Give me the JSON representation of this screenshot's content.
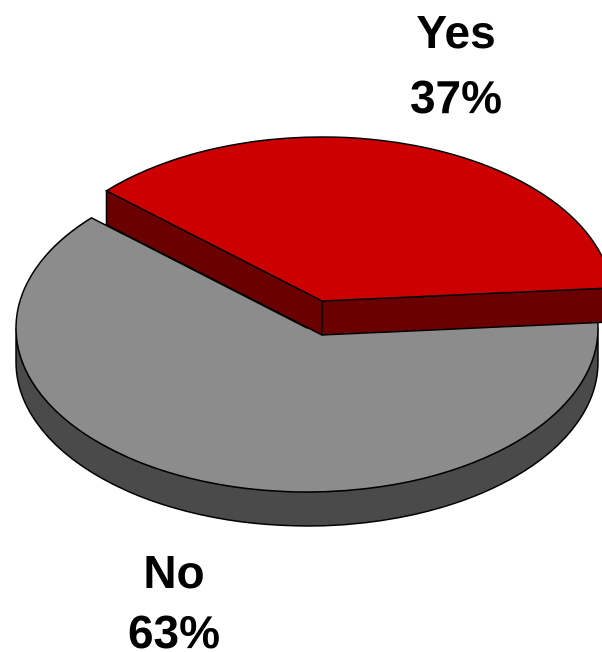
{
  "chart_data": {
    "type": "pie",
    "style": "3d-exploded",
    "slices": [
      {
        "label": "Yes",
        "value": 37,
        "percent_label": "37%",
        "color": "#cc0000",
        "side_color": "#6b0000"
      },
      {
        "label": "No",
        "value": 63,
        "percent_label": "63%",
        "color": "#8c8c8c",
        "side_color": "#4a4a4a"
      }
    ],
    "exploded": "Yes",
    "legend": "none"
  }
}
